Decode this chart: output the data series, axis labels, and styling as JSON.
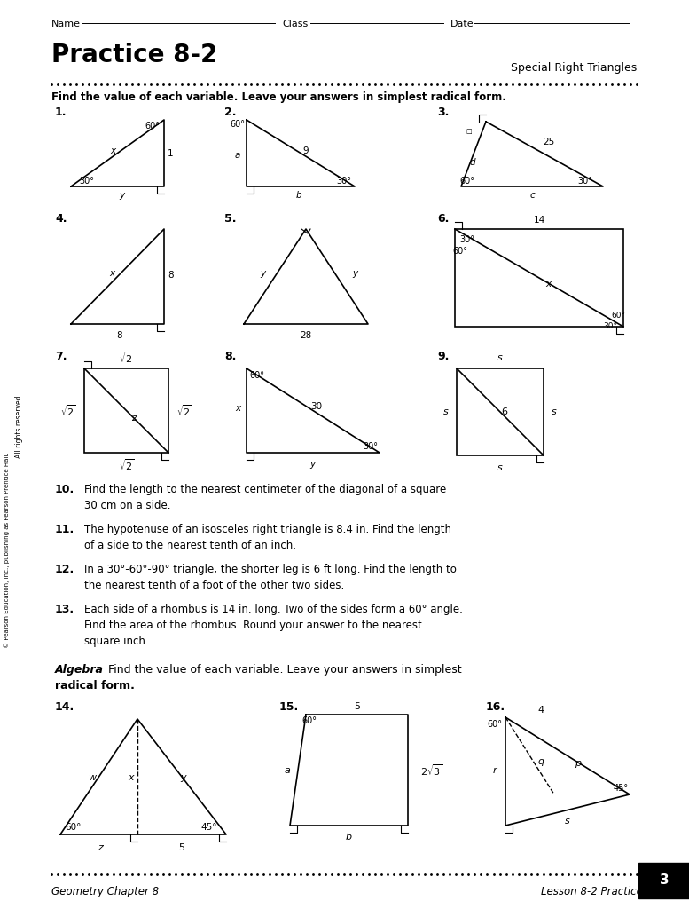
{
  "bg_color": "#ffffff",
  "text_color": "#000000",
  "title": "Practice 8-2",
  "subtitle": "Special Right Triangles",
  "footer_left": "Geometry Chapter 8",
  "footer_right": "Lesson 8-2 Practice",
  "footer_page": "3"
}
